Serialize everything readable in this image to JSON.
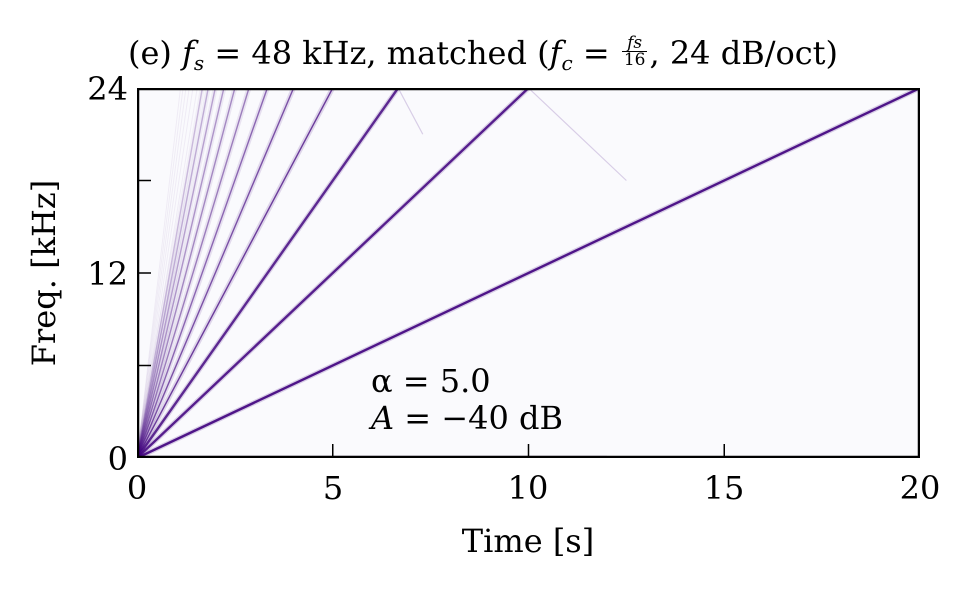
{
  "title": {
    "panel": "(e)",
    "fs_symbol": "f",
    "fs_sub": "s",
    "fs_text": "= 48 kHz, matched (",
    "fc_symbol": "f",
    "fc_sub": "c",
    "eq": "=",
    "frac_num": "fs",
    "frac_den": "16",
    "tail": ", 24 dB/oct)"
  },
  "axes": {
    "xlabel": "Time [s]",
    "ylabel": "Freq. [kHz]",
    "xticks": [
      "0",
      "5",
      "10",
      "15",
      "20"
    ],
    "yticks": [
      "0",
      "12",
      "24"
    ]
  },
  "annotation": {
    "alpha_line": "α = 5.0",
    "amp_symbol": "A",
    "amp_text": "= −40 dB"
  },
  "colors": {
    "line": "#3f007d",
    "background": "#fafafd",
    "axis": "#000000"
  },
  "chart_data": {
    "type": "heatmap",
    "title": "(e) f_s = 48 kHz, matched (f_c = f_s/16, 24 dB/oct)",
    "xlabel": "Time [s]",
    "ylabel": "Freq. [kHz]",
    "xlim": [
      0,
      20
    ],
    "ylim": [
      0,
      24
    ],
    "xticks": [
      0,
      5,
      10,
      15,
      20
    ],
    "yticks_labeled": [
      0,
      12,
      24
    ],
    "yticks_minor": [
      6,
      18
    ],
    "grid": false,
    "colormap": "Purples",
    "description": "Spectrogram of a linear sine sweep (0 to 24 kHz over 20 s) with harmonics; harmonic n rises linearly from 0 Hz and reaches Nyquist (24 kHz) at t = 20/n s, with faint aliased reflections folding back below Nyquist.",
    "series": [
      {
        "name": "harmonic 1",
        "x": [
          0,
          20
        ],
        "y": [
          0,
          24
        ],
        "intensity": 1.0
      },
      {
        "name": "harmonic 2",
        "x": [
          0,
          10
        ],
        "y": [
          0,
          24
        ],
        "intensity": 0.95,
        "alias_fold": {
          "x": [
            10,
            12.5
          ],
          "y": [
            24,
            18
          ]
        }
      },
      {
        "name": "harmonic 3",
        "x": [
          0,
          6.67
        ],
        "y": [
          0,
          24
        ],
        "intensity": 0.9,
        "alias_fold": {
          "x": [
            6.67,
            7.3
          ],
          "y": [
            24,
            21
          ]
        }
      },
      {
        "name": "harmonic 4",
        "x": [
          0,
          5
        ],
        "y": [
          0,
          24
        ],
        "intensity": 0.8
      },
      {
        "name": "harmonic 5",
        "x": [
          0,
          4
        ],
        "y": [
          0,
          24
        ],
        "intensity": 0.7
      },
      {
        "name": "harmonic 6",
        "x": [
          0,
          3.33
        ],
        "y": [
          0,
          24
        ],
        "intensity": 0.6
      },
      {
        "name": "harmonic 7",
        "x": [
          0,
          2.86
        ],
        "y": [
          0,
          24
        ],
        "intensity": 0.5
      },
      {
        "name": "harmonic 8",
        "x": [
          0,
          2.5
        ],
        "y": [
          0,
          24
        ],
        "intensity": 0.45
      },
      {
        "name": "harmonic 9",
        "x": [
          0,
          2.22
        ],
        "y": [
          0,
          24
        ],
        "intensity": 0.4
      },
      {
        "name": "harmonic 10",
        "x": [
          0,
          2.0
        ],
        "y": [
          0,
          24
        ],
        "intensity": 0.35
      },
      {
        "name": "harmonic 11",
        "x": [
          0,
          1.82
        ],
        "y": [
          0,
          24
        ],
        "intensity": 0.3
      },
      {
        "name": "harmonic 12",
        "x": [
          0,
          1.67
        ],
        "y": [
          0,
          24
        ],
        "intensity": 0.25
      }
    ],
    "annotations": [
      "α = 5.0",
      "A = −40 dB"
    ]
  }
}
